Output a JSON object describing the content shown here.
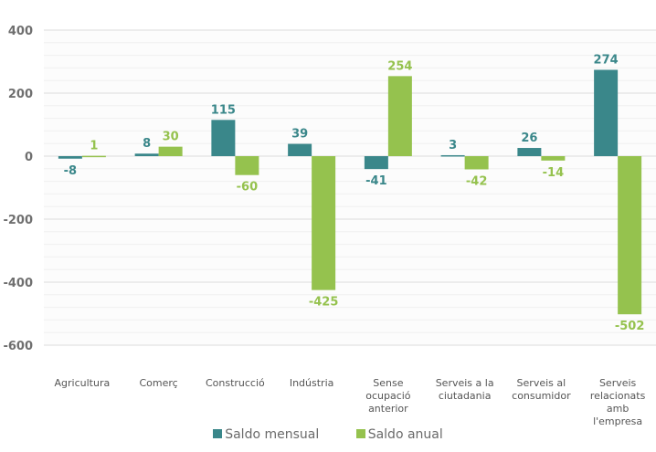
{
  "chart_data": {
    "type": "bar",
    "title": "",
    "xlabel": "",
    "ylabel": "",
    "ylim": [
      -600,
      400
    ],
    "yticks": [
      400,
      200,
      0,
      -200,
      -400,
      -600
    ],
    "grid": true,
    "legend_position": "bottom",
    "categories": [
      "Agricultura",
      "Comerç",
      "Construcció",
      "Indústria",
      "Sense ocupació anterior",
      "Serveis a la ciutadania",
      "Serveis al consumidor",
      "Serveis relacionats amb l'empresa"
    ],
    "category_lines": [
      [
        "Agricultura"
      ],
      [
        "Comerç"
      ],
      [
        "Construcció"
      ],
      [
        "Indústria"
      ],
      [
        "Sense",
        "ocupació",
        "anterior"
      ],
      [
        "Serveis a la",
        "ciutadania"
      ],
      [
        "Serveis al",
        "consumidor"
      ],
      [
        "Serveis",
        "relacionats",
        "amb",
        "l'empresa"
      ]
    ],
    "series": [
      {
        "name": "Saldo mensual",
        "color": "#3a878a",
        "values": [
          -8,
          8,
          115,
          39,
          -41,
          3,
          26,
          274
        ]
      },
      {
        "name": "Saldo anual",
        "color": "#95c24e",
        "values": [
          1,
          30,
          -60,
          -425,
          254,
          -42,
          -14,
          -502
        ]
      }
    ]
  },
  "legend": {
    "items": [
      {
        "label": "Saldo mensual",
        "color": "#3a878a"
      },
      {
        "label": "Saldo anual",
        "color": "#95c24e"
      }
    ]
  }
}
